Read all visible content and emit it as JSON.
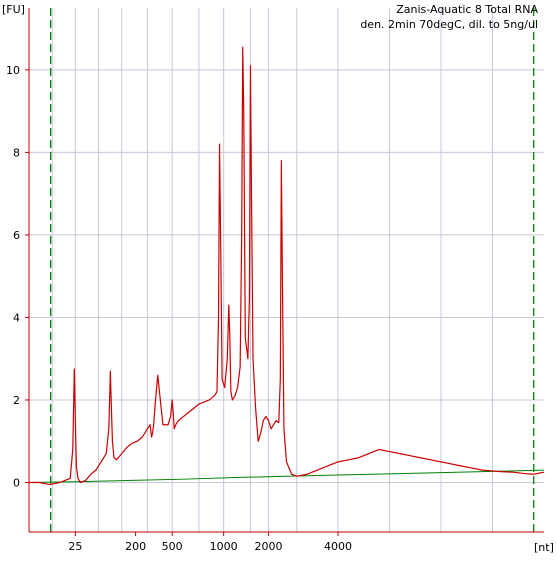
{
  "chart_data": {
    "type": "line",
    "title": "Zanis-Aquatic 8 Total RNA",
    "subtitle": "den. 2min 70degC, dil. to 5ng/ul",
    "ylabel": "[FU]",
    "xlabel": "[nt]",
    "ylim": [
      -1.2,
      11.5
    ],
    "xlim": [
      0,
      1000
    ],
    "y_ticks": [
      0,
      2,
      4,
      6,
      8,
      10
    ],
    "x_tick_labels": [
      {
        "x": 90,
        "label": "25"
      },
      {
        "x": 207,
        "label": "200"
      },
      {
        "x": 278,
        "label": "500"
      },
      {
        "x": 378,
        "label": "1000"
      },
      {
        "x": 465,
        "label": "2000"
      },
      {
        "x": 600,
        "label": "4000"
      }
    ],
    "x_grid_minor": [
      45,
      90,
      135,
      180,
      230,
      278,
      330,
      378,
      430,
      465,
      520,
      600,
      700,
      800,
      900
    ],
    "grid": true,
    "markers": [
      42,
      980
    ],
    "colors": {
      "trace": "#cc0000",
      "baseline": "#008000",
      "marker": "#008000",
      "grid": "#c4c8dc",
      "axis": "#c00000"
    },
    "series": [
      {
        "x": [
          0,
          20,
          40,
          60,
          70,
          80,
          85,
          88,
          90,
          92,
          95,
          100,
          110,
          120,
          130,
          140,
          150,
          155,
          158,
          160,
          162,
          165,
          170,
          180,
          190,
          200,
          210,
          220,
          230,
          235,
          238,
          240,
          242,
          245,
          250,
          260,
          270,
          275,
          278,
          280,
          282,
          285,
          290,
          300,
          310,
          320,
          330,
          340,
          350,
          360,
          365,
          368,
          370,
          372,
          375,
          380,
          385,
          388,
          390,
          392,
          395,
          400,
          405,
          410,
          413,
          415,
          417,
          420,
          425,
          428,
          430,
          432,
          435,
          440,
          445,
          450,
          455,
          460,
          465,
          470,
          475,
          480,
          485,
          488,
          490,
          492,
          495,
          500,
          510,
          520,
          540,
          560,
          580,
          600,
          620,
          640,
          660,
          680,
          700,
          720,
          740,
          760,
          780,
          800,
          820,
          840,
          860,
          880,
          900,
          920,
          940,
          960,
          980,
          1000
        ],
        "y": [
          0,
          0,
          -0.05,
          0,
          0.05,
          0.1,
          0.8,
          2.75,
          1.5,
          0.4,
          0.1,
          0,
          0.05,
          0.2,
          0.3,
          0.5,
          0.7,
          1.3,
          2.7,
          1.8,
          1.0,
          0.6,
          0.55,
          0.7,
          0.85,
          0.95,
          1.0,
          1.1,
          1.3,
          1.4,
          1.1,
          1.2,
          1.4,
          1.9,
          2.6,
          1.4,
          1.4,
          1.6,
          2.0,
          1.7,
          1.3,
          1.4,
          1.5,
          1.6,
          1.7,
          1.8,
          1.9,
          1.95,
          2.0,
          2.1,
          2.2,
          4.0,
          8.2,
          6.0,
          2.5,
          2.3,
          3.0,
          4.3,
          3.5,
          2.2,
          2.0,
          2.1,
          2.3,
          2.8,
          6.0,
          10.55,
          9.0,
          3.5,
          3.0,
          4.5,
          10.1,
          7.0,
          3.0,
          1.8,
          1.0,
          1.2,
          1.5,
          1.6,
          1.5,
          1.3,
          1.4,
          1.5,
          1.45,
          2.5,
          7.8,
          5.0,
          1.3,
          0.5,
          0.2,
          0.15,
          0.2,
          0.3,
          0.4,
          0.5,
          0.55,
          0.6,
          0.7,
          0.8,
          0.75,
          0.7,
          0.65,
          0.6,
          0.55,
          0.5,
          0.45,
          0.4,
          0.35,
          0.3,
          0.28,
          0.26,
          0.25,
          0.22,
          0.2,
          0.25
        ]
      },
      {
        "x": [
          0,
          100,
          200,
          300,
          400,
          500,
          600,
          700,
          800,
          900,
          1000
        ],
        "y": [
          0,
          0.02,
          0.05,
          0.08,
          0.12,
          0.15,
          0.18,
          0.21,
          0.24,
          0.27,
          0.3
        ]
      }
    ]
  }
}
